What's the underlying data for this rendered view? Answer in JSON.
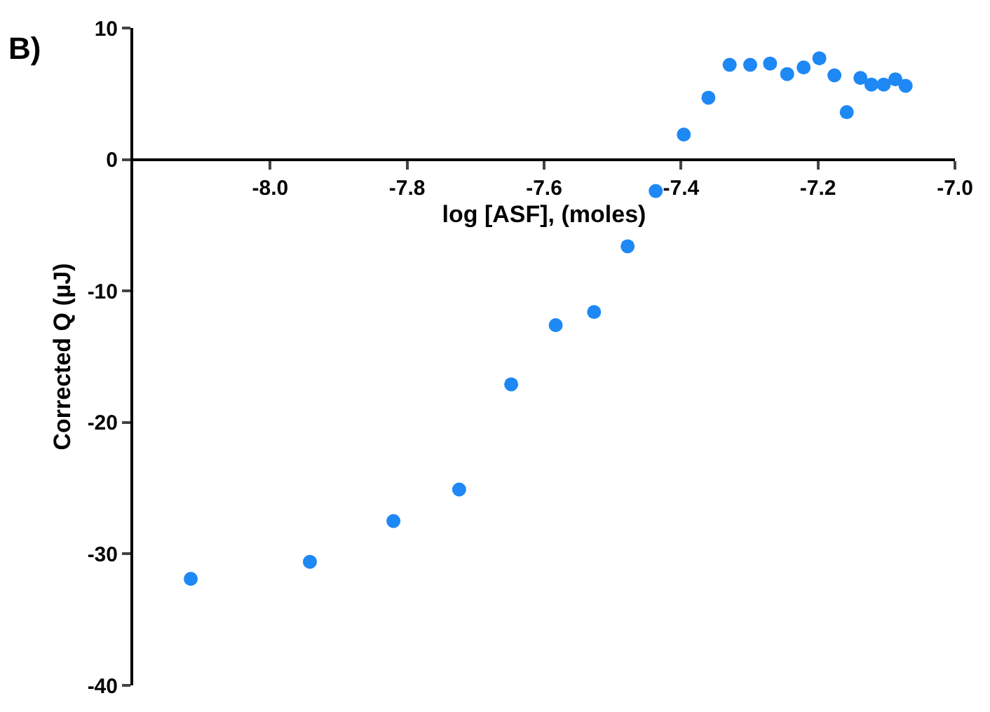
{
  "chart_data": {
    "type": "scatter",
    "xlabel": "log [ASF], (moles)",
    "ylabel": "Corrected Q (µJ)",
    "annotations": [
      "B)"
    ],
    "x": [
      -8.116,
      -7.942,
      -7.82,
      -7.724,
      -7.648,
      -7.583,
      -7.527,
      -7.478,
      -7.437,
      -7.396,
      -7.36,
      -7.329,
      -7.299,
      -7.27,
      -7.245,
      -7.221,
      -7.198,
      -7.176,
      -7.158,
      -7.138,
      -7.122,
      -7.104,
      -7.087,
      -7.072
    ],
    "series": [
      {
        "color": "#1e88f5",
        "values": [
          -31.9,
          -30.6,
          -27.5,
          -25.1,
          -17.1,
          -12.6,
          -11.6,
          -6.6,
          -2.4,
          1.9,
          4.7,
          7.2,
          7.2,
          7.3,
          6.5,
          7.0,
          7.7,
          6.4,
          3.6,
          6.2,
          5.7,
          5.7,
          6.1,
          5.6
        ]
      }
    ],
    "xlim": [
      -8.2,
      -7.0
    ],
    "xticks": [
      {
        "value": -8.0,
        "label": "-8.0"
      },
      -7.8,
      -7.6,
      -7.4,
      -7.2,
      {
        "value": -7.0,
        "label": "-7.0"
      }
    ],
    "ylim": [
      -40,
      10
    ],
    "yticks": [
      10,
      0,
      -10,
      -20,
      -30,
      -40
    ],
    "grid": false,
    "marker": "circle"
  }
}
